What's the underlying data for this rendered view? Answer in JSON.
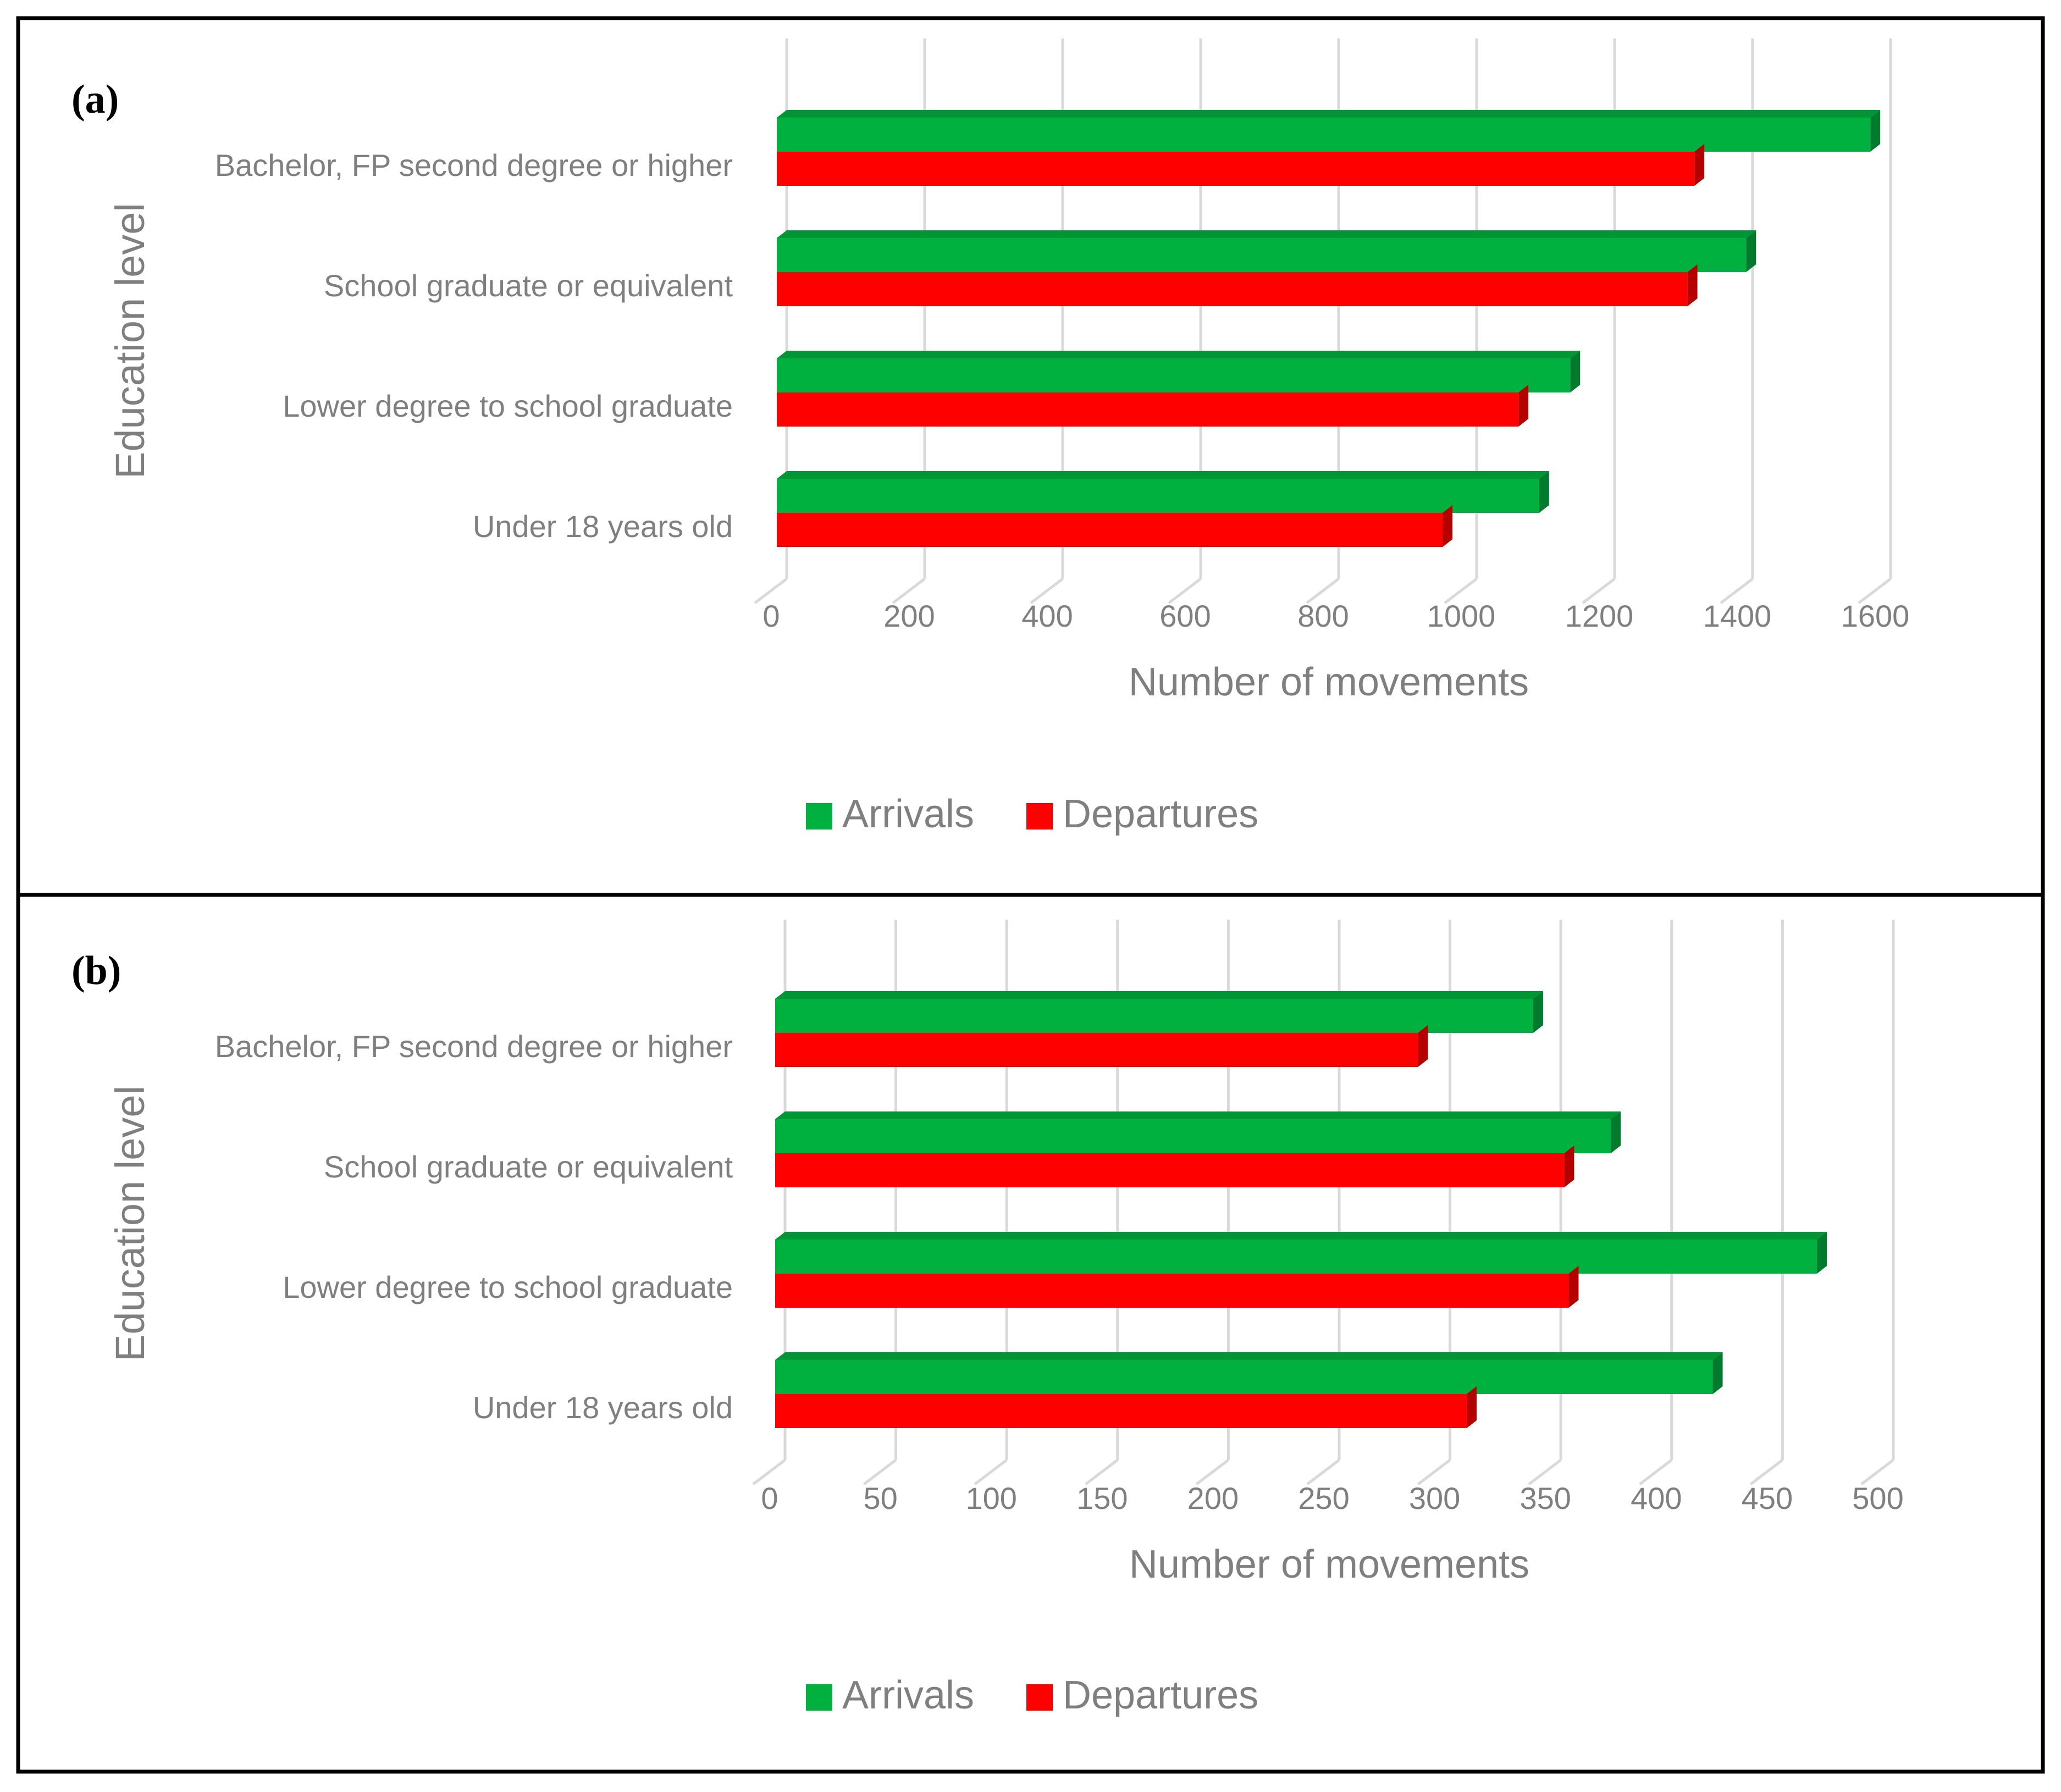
{
  "colors": {
    "arrivals": "#00b140",
    "arrivals_side": "#007a2c",
    "arrivals_top": "#009636",
    "departures": "#ff0000",
    "departures_side": "#b50000",
    "departures_top": "#d80000",
    "grid": "#d9d9d9",
    "text": "#7f7f7f",
    "frame": "#000000"
  },
  "chart_data": [
    {
      "type": "bar",
      "orientation": "horizontal",
      "panel_label": "(a)",
      "categories": [
        "Bachelor, FP second degree or higher",
        "School graduate or equivalent",
        "Lower degree to school graduate",
        "Under 18 years old"
      ],
      "series": [
        {
          "name": "Arrivals",
          "values": [
            1585,
            1405,
            1150,
            1105
          ]
        },
        {
          "name": "Departures",
          "values": [
            1330,
            1320,
            1075,
            965
          ]
        }
      ],
      "xlabel": "Number of movements",
      "ylabel": "Education level",
      "xlim": [
        0,
        1600
      ],
      "xticks": [
        "0",
        "200",
        "400",
        "600",
        "800",
        "1000",
        "1200",
        "1400",
        "1600"
      ],
      "grid": true,
      "legend": [
        "Arrivals",
        "Departures"
      ],
      "legend_position": "bottom"
    },
    {
      "type": "bar",
      "orientation": "horizontal",
      "panel_label": "(b)",
      "categories": [
        "Bachelor, FP second degree or higher",
        "School graduate or equivalent",
        "Lower degree to school graduate",
        "Under 18 years old"
      ],
      "series": [
        {
          "name": "Arrivals",
          "values": [
            342,
            377,
            470,
            423
          ]
        },
        {
          "name": "Departures",
          "values": [
            290,
            356,
            358,
            312
          ]
        }
      ],
      "xlabel": "Number of movements",
      "ylabel": "Education level",
      "xlim": [
        0,
        500
      ],
      "xticks": [
        "0",
        "50",
        "100",
        "150",
        "200",
        "250",
        "300",
        "350",
        "400",
        "450",
        "500"
      ],
      "grid": true,
      "legend": [
        "Arrivals",
        "Departures"
      ],
      "legend_position": "bottom"
    }
  ]
}
